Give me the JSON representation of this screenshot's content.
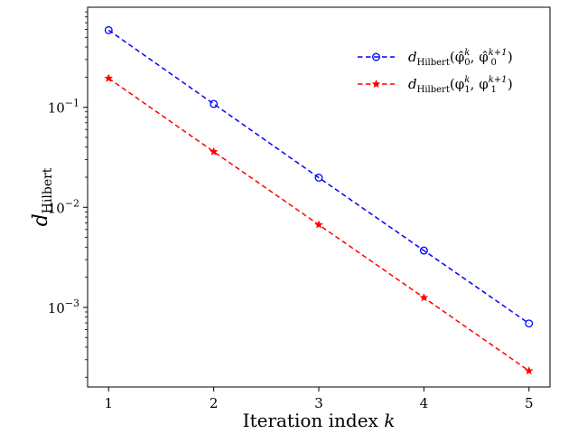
{
  "chart_data": {
    "type": "line",
    "title": "",
    "xlabel": "Iteration index k",
    "ylabel": "d_Hilbert",
    "yscale": "log",
    "xlim": [
      0.8,
      5.2
    ],
    "ylim": [
      0.00016,
      1.0
    ],
    "grid": false,
    "legend_position": "top-right",
    "x": [
      1,
      2,
      3,
      4,
      5
    ],
    "x_tick_labels": [
      "1",
      "2",
      "3",
      "4",
      "5"
    ],
    "y_ticks": [
      {
        "value": 0.1,
        "base": "10",
        "exp": "−1"
      },
      {
        "value": 0.01,
        "base": "10",
        "exp": "−2"
      },
      {
        "value": 0.001,
        "base": "10",
        "exp": "−3"
      }
    ],
    "series": [
      {
        "name": "d_Hilbert(φ̂₀^k, φ̂₀^(k+1))",
        "legend_sub": "Hilbert",
        "legend_args": "(φ̂",
        "legend_args2": ", φ̂",
        "legend_sub_idx": "0",
        "color": "#0000ff",
        "marker": "circle",
        "values": [
          0.59,
          0.108,
          0.0198,
          0.0037,
          0.00069
        ]
      },
      {
        "name": "d_Hilbert(φ₁^k, φ₁^(k+1))",
        "legend_sub": "Hilbert",
        "legend_args": "(φ",
        "legend_args2": ", φ",
        "legend_sub_idx": "1",
        "color": "#ff0000",
        "marker": "star",
        "values": [
          0.195,
          0.036,
          0.0067,
          0.00125,
          0.000232
        ]
      }
    ]
  }
}
